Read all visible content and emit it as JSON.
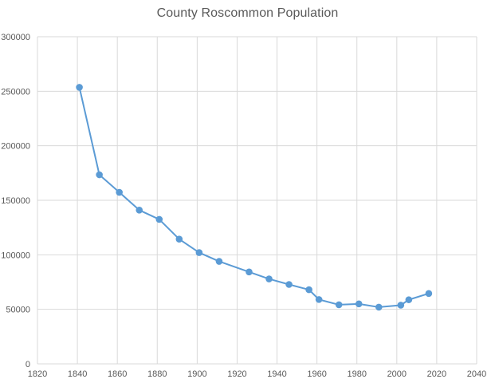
{
  "chart_data": {
    "type": "scatter",
    "title": "County Roscommon Population",
    "xlabel": "",
    "ylabel": "",
    "xlim": [
      1820,
      2040
    ],
    "ylim": [
      0,
      300000
    ],
    "x_ticks": [
      1820,
      1840,
      1860,
      1880,
      1900,
      1920,
      1940,
      1960,
      1980,
      2000,
      2020,
      2040
    ],
    "y_ticks": [
      0,
      50000,
      100000,
      150000,
      200000,
      250000,
      300000
    ],
    "grid": true,
    "legend": "none",
    "series_color": "#5b9bd5",
    "series": [
      {
        "x": [
          1841,
          1851,
          1861,
          1871,
          1881,
          1891,
          1901,
          1911,
          1926,
          1936,
          1946,
          1956,
          1961,
          1971,
          1981,
          1991,
          2002,
          2006,
          2016
        ],
        "y": [
          253600,
          173400,
          157300,
          141000,
          132500,
          114400,
          102000,
          94000,
          84300,
          77900,
          72800,
          68000,
          59000,
          54200,
          55000,
          52000,
          53800,
          58800,
          64500
        ]
      }
    ]
  }
}
